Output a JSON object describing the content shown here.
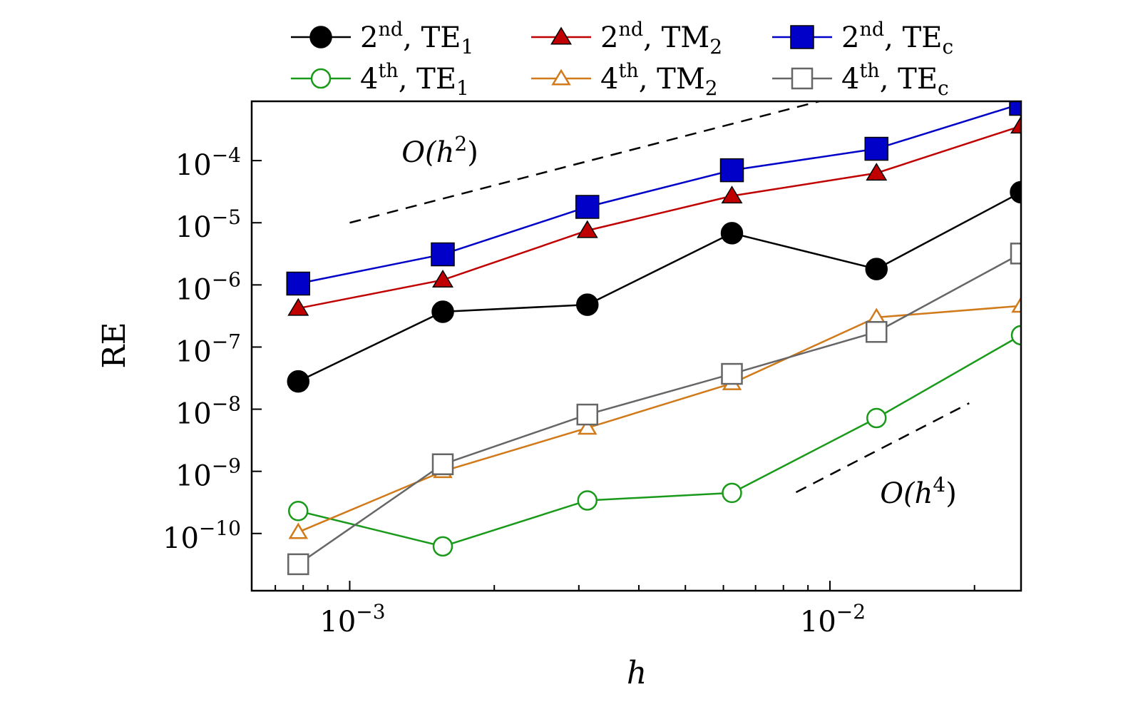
{
  "chart_data": {
    "type": "line",
    "xscale": "log",
    "yscale": "log",
    "xlabel": "h",
    "ylabel": "RE",
    "xlim": [
      0.000625,
      0.025
    ],
    "ylim": [
      1.2e-11,
      0.0009
    ],
    "grid": false,
    "legend_position": "top, above plot, 3 columns x 2 rows",
    "x": [
      0.00078125,
      0.0015625,
      0.003125,
      0.00625,
      0.0125,
      0.025
    ],
    "x_ticks": [
      {
        "value": 0.001,
        "base": "10",
        "exp": "−3"
      },
      {
        "value": 0.01,
        "base": "10",
        "exp": "−2"
      }
    ],
    "y_ticks": [
      {
        "value": 0.0001,
        "base": "10",
        "exp": "−4"
      },
      {
        "value": 1e-05,
        "base": "10",
        "exp": "−5"
      },
      {
        "value": 1e-06,
        "base": "10",
        "exp": "−6"
      },
      {
        "value": 1e-07,
        "base": "10",
        "exp": "−7"
      },
      {
        "value": 1e-08,
        "base": "10",
        "exp": "−8"
      },
      {
        "value": 1e-09,
        "base": "10",
        "exp": "−9"
      },
      {
        "value": 1e-10,
        "base": "10",
        "exp": "−10"
      }
    ],
    "series": [
      {
        "label_main": "2",
        "label_sup": "nd",
        "label_mode": ", TE",
        "label_sub": "1",
        "color": "#000000",
        "marker": "circle",
        "filled": true,
        "values": [
          2.8e-08,
          3.7e-07,
          4.8e-07,
          6.8e-06,
          1.8e-06,
          3.1e-05
        ]
      },
      {
        "label_main": "2",
        "label_sup": "nd",
        "label_mode": ", TM",
        "label_sub": "2",
        "color": "#c00000",
        "marker": "triangle",
        "filled": true,
        "values": [
          4.2e-07,
          1.2e-06,
          7.5e-06,
          2.7e-05,
          6.3e-05,
          0.00036
        ]
      },
      {
        "label_main": "2",
        "label_sup": "nd",
        "label_mode": ", TE",
        "label_sub": "c",
        "color": "#0000c8",
        "marker": "square",
        "filled": true,
        "values": [
          1.05e-06,
          3.1e-06,
          1.8e-05,
          7e-05,
          0.000155,
          0.00082
        ]
      },
      {
        "label_main": "4",
        "label_sup": "th",
        "label_mode": ", TE",
        "label_sub": "1",
        "color": "#1a9a1a",
        "marker": "circle",
        "filled": false,
        "values": [
          2.3e-10,
          6.2e-11,
          3.4e-10,
          4.5e-10,
          7.2e-09,
          1.55e-07
        ]
      },
      {
        "label_main": "4",
        "label_sup": "th",
        "label_mode": ", TM",
        "label_sub": "2",
        "color": "#d07a1a",
        "marker": "triangle",
        "filled": false,
        "values": [
          1.05e-10,
          1e-09,
          5e-09,
          2.6e-08,
          3e-07,
          4.6e-07
        ]
      },
      {
        "label_main": "4",
        "label_sup": "th",
        "label_mode": ", TE",
        "label_sub": "c",
        "color": "#666666",
        "marker": "square",
        "filled": false,
        "values": [
          3.2e-11,
          1.3e-09,
          8.2e-09,
          3.7e-08,
          1.75e-07,
          3.2e-06
        ]
      }
    ],
    "reference_lines": [
      {
        "order_label": "O(h²)",
        "anno_main": "O(h",
        "anno_sup": "2",
        "anno_close": ")",
        "x": [
          0.001,
          0.0095
        ],
        "y": [
          1e-05,
          0.0009
        ]
      },
      {
        "order_label": "O(h⁴)",
        "anno_main": "O(h",
        "anno_sup": "4",
        "anno_close": ")",
        "x": [
          0.0085,
          0.0195
        ],
        "y": [
          4.6e-10,
          1.25e-08
        ]
      }
    ]
  }
}
